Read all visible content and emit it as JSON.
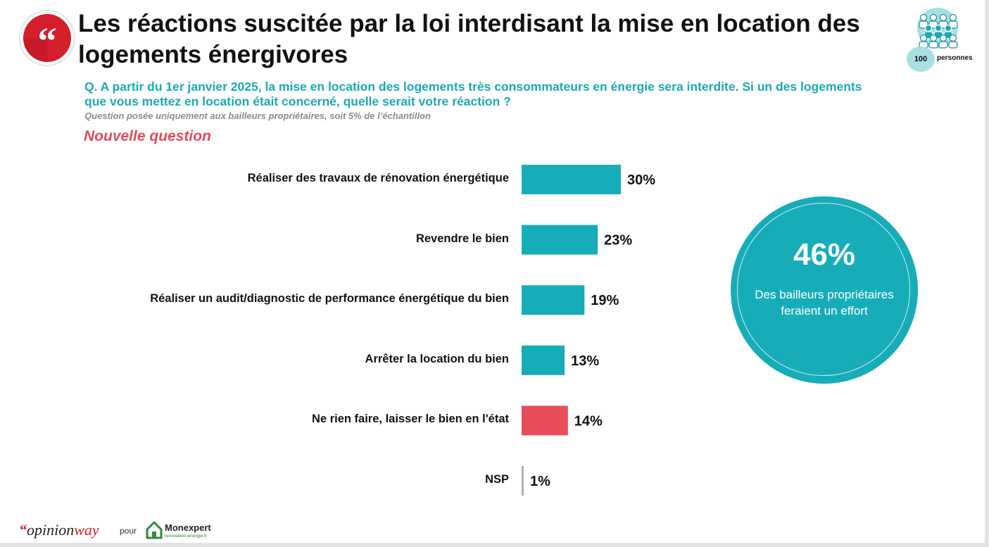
{
  "header": {
    "title": "Les réactions suscitée par la loi interdisant la mise en location des logements énergivores",
    "sample_count": "100",
    "sample_unit": "personnes"
  },
  "question": {
    "text": "Q. A partir du 1er janvier 2025, la mise en location des logements très consommateurs en énergie sera interdite. Si un des logements que vous mettez en location était concerné, quelle serait votre réaction ?",
    "note": "Question posée uniquement aux bailleurs propriétaires, soit 5% de l’échantillon",
    "badge": "Nouvelle question"
  },
  "highlight": {
    "value": "46%",
    "text": "Des bailleurs propriétaires feraient un effort"
  },
  "footer": {
    "brand_quote": "“",
    "brand_opinion": "opinion",
    "brand_way": "way",
    "pour": "pour",
    "partner_name": "Monexpert",
    "partner_sub": "renovation-energie.fr"
  },
  "chart_data": {
    "type": "bar",
    "orientation": "horizontal",
    "categories": [
      "Réaliser des travaux de rénovation énergétique",
      "Revendre le bien",
      "Réaliser un audit/diagnostic de performance énergétique du bien",
      "Arrêter la location du bien",
      "Ne rien faire, laisser le bien en l'état",
      "NSP"
    ],
    "values": [
      30,
      23,
      19,
      13,
      14,
      1
    ],
    "value_labels": [
      "30%",
      "23%",
      "19%",
      "13%",
      "14%",
      "1%"
    ],
    "bar_colors": [
      "#17adb8",
      "#17adb8",
      "#17adb8",
      "#17adb8",
      "#e84e59",
      "#b0b0b0"
    ],
    "unit": "%",
    "grid": false,
    "legend": "none"
  }
}
